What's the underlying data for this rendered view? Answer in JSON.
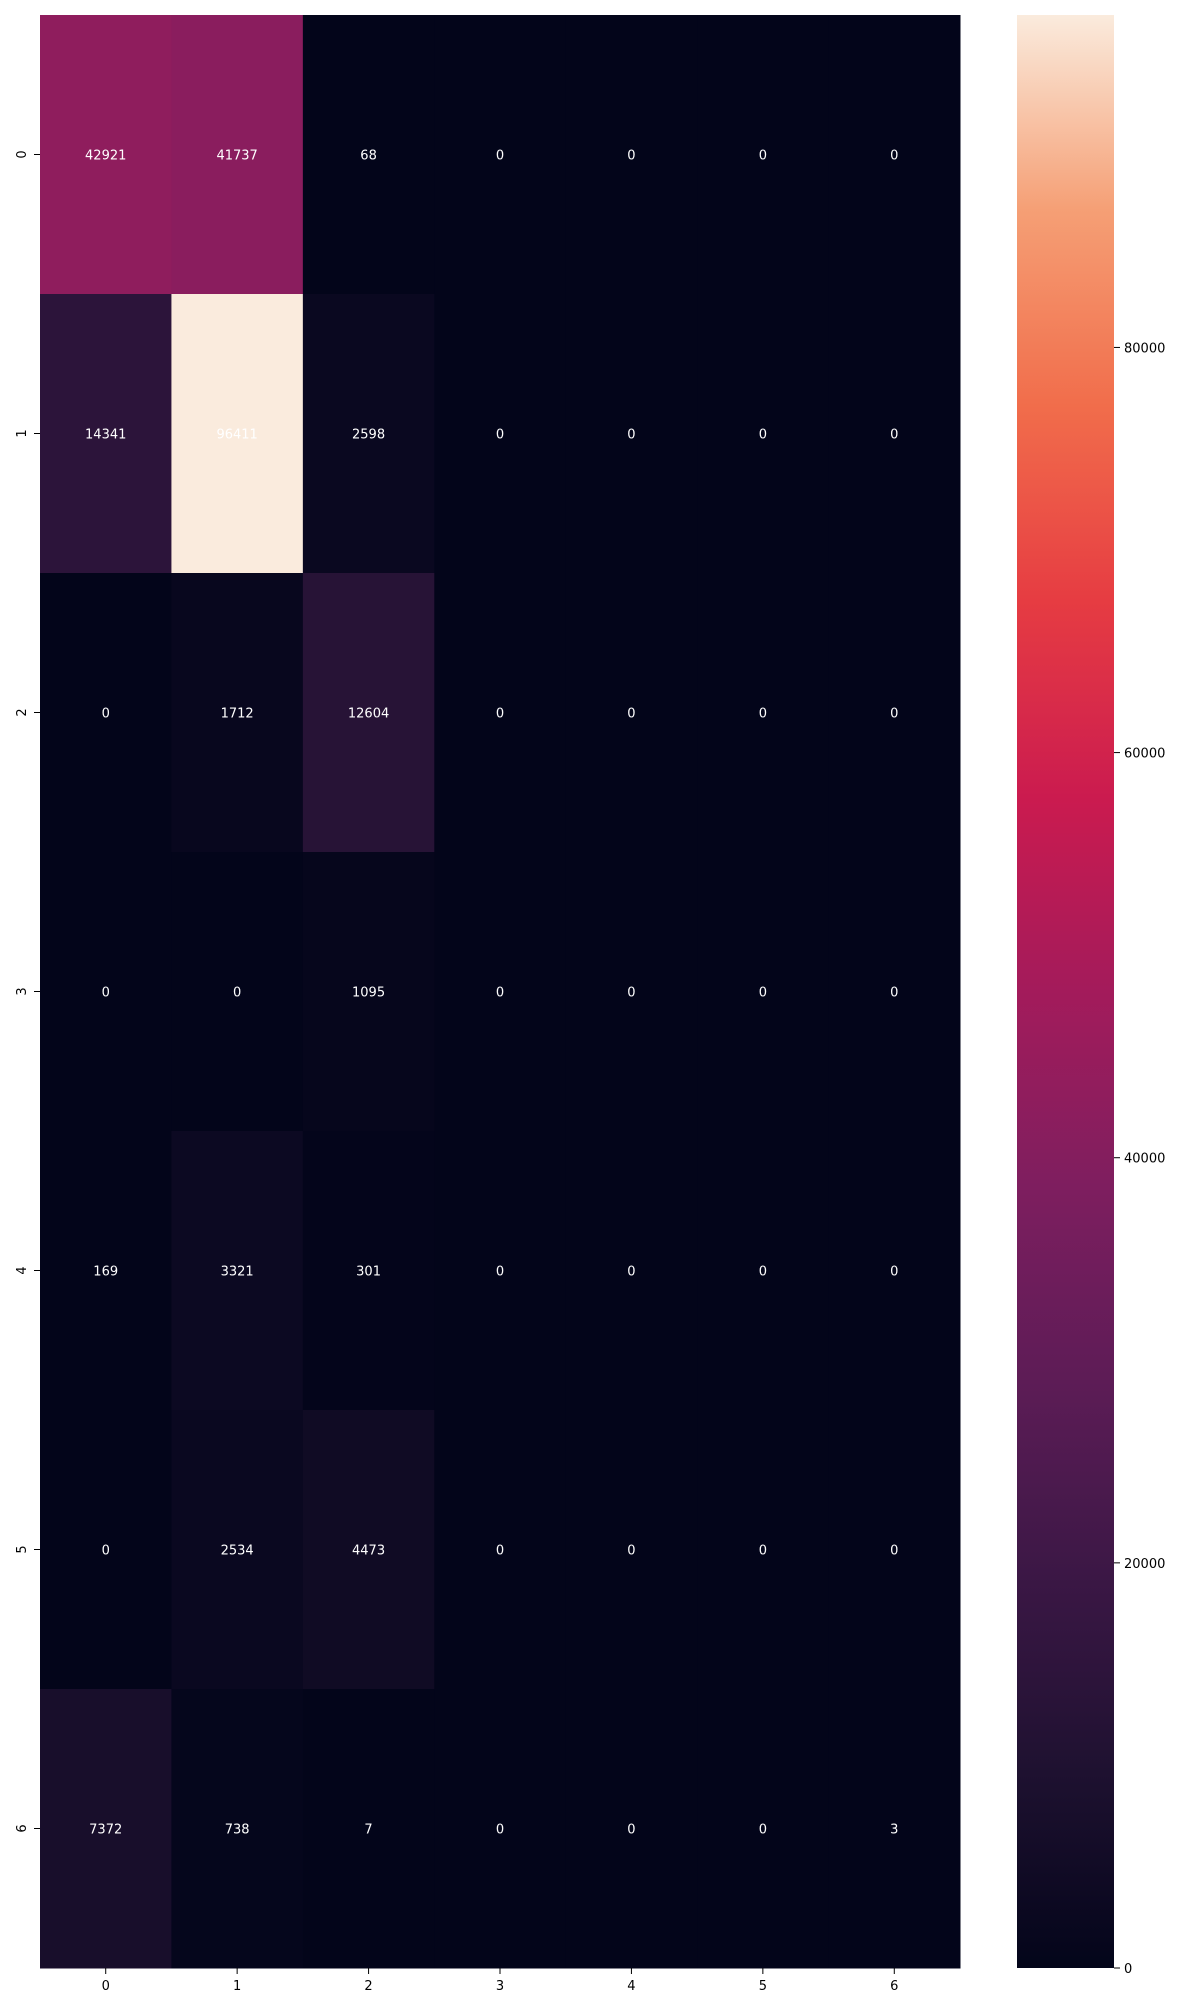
{
  "chart_data": {
    "type": "heatmap",
    "title": "",
    "xlabel": "",
    "ylabel": "",
    "x_categories": [
      "0",
      "1",
      "2",
      "3",
      "4",
      "5",
      "6"
    ],
    "y_categories": [
      "0",
      "1",
      "2",
      "3",
      "4",
      "5",
      "6"
    ],
    "values": [
      [
        42921,
        41737,
        68,
        0,
        0,
        0,
        0
      ],
      [
        14341,
        96411,
        2598,
        0,
        0,
        0,
        0
      ],
      [
        0,
        1712,
        12604,
        0,
        0,
        0,
        0
      ],
      [
        0,
        0,
        1095,
        0,
        0,
        0,
        0
      ],
      [
        169,
        3321,
        301,
        0,
        0,
        0,
        0
      ],
      [
        0,
        2534,
        4473,
        0,
        0,
        0,
        0
      ],
      [
        7372,
        738,
        7,
        0,
        0,
        0,
        3
      ]
    ],
    "colormap": "rocket",
    "colorbar": {
      "range": [
        0,
        96411
      ],
      "ticks": [
        0,
        20000,
        40000,
        60000,
        80000
      ]
    },
    "annotated": true,
    "grid": false
  }
}
